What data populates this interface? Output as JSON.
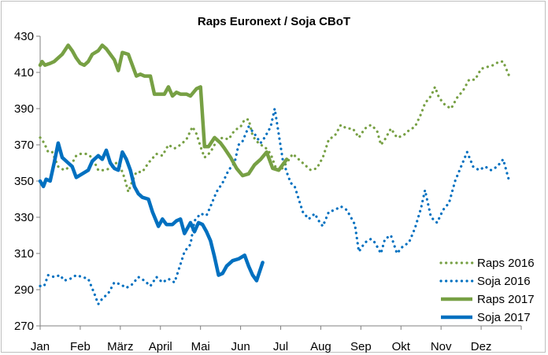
{
  "chart_data": {
    "type": "line",
    "title": "Raps Euronext / Soja CBoT",
    "xlabel": "",
    "ylabel": "",
    "ylim": [
      270,
      430
    ],
    "yticks": [
      270,
      290,
      310,
      330,
      350,
      370,
      390,
      410,
      430
    ],
    "xlim": [
      0,
      12
    ],
    "x_tick_labels": [
      "Jan",
      "Feb",
      "März",
      "April",
      "Mai",
      "Jun",
      "Jul",
      "Aug",
      "Sep",
      "Okt",
      "Nov",
      "Dez"
    ],
    "grid": false,
    "legend_position": "bottom-right",
    "series": [
      {
        "name": "Raps 2016",
        "color": "#77a044",
        "style": "dotted",
        "points": [
          [
            0.0,
            374
          ],
          [
            0.1,
            371
          ],
          [
            0.2,
            366
          ],
          [
            0.3,
            366
          ],
          [
            0.45,
            358
          ],
          [
            0.6,
            356
          ],
          [
            0.75,
            358
          ],
          [
            0.9,
            364
          ],
          [
            1.0,
            365
          ],
          [
            1.15,
            365
          ],
          [
            1.3,
            363
          ],
          [
            1.45,
            356
          ],
          [
            1.6,
            356
          ],
          [
            1.75,
            357
          ],
          [
            1.9,
            360
          ],
          [
            2.0,
            358
          ],
          [
            2.1,
            352
          ],
          [
            2.2,
            344
          ],
          [
            2.3,
            350
          ],
          [
            2.4,
            355
          ],
          [
            2.55,
            355
          ],
          [
            2.7,
            360
          ],
          [
            2.9,
            365
          ],
          [
            3.05,
            364
          ],
          [
            3.2,
            370
          ],
          [
            3.35,
            368
          ],
          [
            3.5,
            370
          ],
          [
            3.65,
            373
          ],
          [
            3.8,
            380
          ],
          [
            3.9,
            376
          ],
          [
            4.0,
            369
          ],
          [
            4.1,
            363
          ],
          [
            4.25,
            366
          ],
          [
            4.4,
            372
          ],
          [
            4.55,
            374
          ],
          [
            4.7,
            373
          ],
          [
            4.85,
            378
          ],
          [
            5.0,
            380
          ],
          [
            5.1,
            384
          ],
          [
            5.2,
            384
          ],
          [
            5.3,
            375
          ],
          [
            5.4,
            372
          ],
          [
            5.5,
            370
          ],
          [
            5.6,
            369
          ],
          [
            5.75,
            365
          ],
          [
            5.9,
            356
          ],
          [
            6.0,
            356
          ],
          [
            6.15,
            360
          ],
          [
            6.3,
            365
          ],
          [
            6.45,
            362
          ],
          [
            6.6,
            359
          ],
          [
            6.75,
            356
          ],
          [
            6.9,
            357
          ],
          [
            7.05,
            363
          ],
          [
            7.2,
            373
          ],
          [
            7.35,
            375
          ],
          [
            7.5,
            381
          ],
          [
            7.65,
            379
          ],
          [
            7.8,
            379
          ],
          [
            7.95,
            374
          ],
          [
            8.1,
            379
          ],
          [
            8.25,
            381
          ],
          [
            8.4,
            378
          ],
          [
            8.5,
            370
          ],
          [
            8.6,
            373
          ],
          [
            8.75,
            379
          ],
          [
            8.9,
            374
          ],
          [
            9.05,
            375
          ],
          [
            9.2,
            378
          ],
          [
            9.35,
            380
          ],
          [
            9.5,
            387
          ],
          [
            9.6,
            393
          ],
          [
            9.75,
            397
          ],
          [
            9.85,
            402
          ],
          [
            9.95,
            396
          ],
          [
            10.1,
            392
          ],
          [
            10.25,
            390
          ],
          [
            10.4,
            396
          ],
          [
            10.55,
            400
          ],
          [
            10.7,
            406
          ],
          [
            10.85,
            406
          ],
          [
            11.0,
            412
          ],
          [
            11.15,
            413
          ],
          [
            11.3,
            414
          ],
          [
            11.45,
            416
          ],
          [
            11.55,
            416
          ],
          [
            11.7,
            408
          ]
        ]
      },
      {
        "name": "Soja 2016",
        "color": "#0070c0",
        "style": "dotted",
        "points": [
          [
            0.0,
            292
          ],
          [
            0.1,
            292
          ],
          [
            0.2,
            298
          ],
          [
            0.35,
            297
          ],
          [
            0.5,
            298
          ],
          [
            0.6,
            295
          ],
          [
            0.75,
            296
          ],
          [
            0.9,
            298
          ],
          [
            1.05,
            297
          ],
          [
            1.2,
            296
          ],
          [
            1.35,
            288
          ],
          [
            1.45,
            282
          ],
          [
            1.55,
            285
          ],
          [
            1.7,
            288
          ],
          [
            1.85,
            294
          ],
          [
            2.0,
            293
          ],
          [
            2.15,
            291
          ],
          [
            2.3,
            293
          ],
          [
            2.45,
            297
          ],
          [
            2.6,
            295
          ],
          [
            2.75,
            292
          ],
          [
            2.9,
            297
          ],
          [
            3.05,
            294
          ],
          [
            3.2,
            296
          ],
          [
            3.35,
            294
          ],
          [
            3.5,
            304
          ],
          [
            3.6,
            311
          ],
          [
            3.75,
            315
          ],
          [
            3.85,
            328
          ],
          [
            4.0,
            332
          ],
          [
            4.15,
            331
          ],
          [
            4.25,
            336
          ],
          [
            4.4,
            344
          ],
          [
            4.55,
            349
          ],
          [
            4.7,
            356
          ],
          [
            4.85,
            360
          ],
          [
            4.95,
            370
          ],
          [
            5.05,
            372
          ],
          [
            5.2,
            380
          ],
          [
            5.35,
            376
          ],
          [
            5.5,
            371
          ],
          [
            5.6,
            374
          ],
          [
            5.75,
            380
          ],
          [
            5.85,
            390
          ],
          [
            5.95,
            376
          ],
          [
            6.05,
            362
          ],
          [
            6.15,
            355
          ],
          [
            6.25,
            349
          ],
          [
            6.35,
            347
          ],
          [
            6.45,
            340
          ],
          [
            6.55,
            333
          ],
          [
            6.7,
            329
          ],
          [
            6.85,
            332
          ],
          [
            6.95,
            328
          ],
          [
            7.05,
            325
          ],
          [
            7.2,
            333
          ],
          [
            7.35,
            334
          ],
          [
            7.5,
            336
          ],
          [
            7.65,
            334
          ],
          [
            7.75,
            330
          ],
          [
            7.85,
            326
          ],
          [
            7.95,
            311
          ],
          [
            8.1,
            316
          ],
          [
            8.25,
            318
          ],
          [
            8.35,
            316
          ],
          [
            8.5,
            310
          ],
          [
            8.6,
            318
          ],
          [
            8.75,
            320
          ],
          [
            8.9,
            310
          ],
          [
            9.05,
            314
          ],
          [
            9.2,
            316
          ],
          [
            9.35,
            324
          ],
          [
            9.5,
            335
          ],
          [
            9.6,
            345
          ],
          [
            9.75,
            330
          ],
          [
            9.9,
            327
          ],
          [
            10.05,
            334
          ],
          [
            10.2,
            338
          ],
          [
            10.35,
            350
          ],
          [
            10.5,
            358
          ],
          [
            10.65,
            366
          ],
          [
            10.8,
            358
          ],
          [
            10.95,
            356
          ],
          [
            11.1,
            358
          ],
          [
            11.25,
            356
          ],
          [
            11.4,
            358
          ],
          [
            11.55,
            362
          ],
          [
            11.7,
            350
          ]
        ]
      },
      {
        "name": "Raps 2017",
        "color": "#77a044",
        "style": "solid",
        "points": [
          [
            0.0,
            414
          ],
          [
            0.05,
            416
          ],
          [
            0.12,
            414
          ],
          [
            0.25,
            415
          ],
          [
            0.35,
            416
          ],
          [
            0.45,
            418
          ],
          [
            0.55,
            420
          ],
          [
            0.7,
            425
          ],
          [
            0.8,
            422
          ],
          [
            0.9,
            418
          ],
          [
            1.0,
            415
          ],
          [
            1.1,
            414
          ],
          [
            1.2,
            416
          ],
          [
            1.3,
            420
          ],
          [
            1.45,
            422
          ],
          [
            1.55,
            425
          ],
          [
            1.65,
            423
          ],
          [
            1.75,
            420
          ],
          [
            1.85,
            417
          ],
          [
            1.95,
            411
          ],
          [
            2.05,
            421
          ],
          [
            2.2,
            420
          ],
          [
            2.3,
            414
          ],
          [
            2.4,
            408
          ],
          [
            2.5,
            409
          ],
          [
            2.6,
            408
          ],
          [
            2.75,
            408
          ],
          [
            2.85,
            398
          ],
          [
            3.0,
            398
          ],
          [
            3.1,
            398
          ],
          [
            3.2,
            402
          ],
          [
            3.3,
            397
          ],
          [
            3.4,
            399
          ],
          [
            3.5,
            398
          ],
          [
            3.65,
            398
          ],
          [
            3.75,
            397
          ],
          [
            3.9,
            401
          ],
          [
            4.0,
            402
          ],
          [
            4.1,
            369
          ],
          [
            4.2,
            369
          ],
          [
            4.35,
            374
          ],
          [
            4.5,
            371
          ],
          [
            4.6,
            368
          ],
          [
            4.75,
            363
          ],
          [
            4.9,
            357
          ],
          [
            5.05,
            353
          ],
          [
            5.2,
            354
          ],
          [
            5.35,
            359
          ],
          [
            5.5,
            362
          ],
          [
            5.65,
            366
          ],
          [
            5.8,
            357
          ],
          [
            5.95,
            356
          ],
          [
            6.05,
            359
          ],
          [
            6.15,
            362
          ]
        ]
      },
      {
        "name": "Soja 2017",
        "color": "#0070c0",
        "style": "solid",
        "points": [
          [
            0.0,
            350
          ],
          [
            0.08,
            347
          ],
          [
            0.15,
            351
          ],
          [
            0.25,
            350
          ],
          [
            0.35,
            360
          ],
          [
            0.45,
            371
          ],
          [
            0.55,
            363
          ],
          [
            0.7,
            360
          ],
          [
            0.8,
            358
          ],
          [
            0.9,
            352
          ],
          [
            1.05,
            354
          ],
          [
            1.2,
            356
          ],
          [
            1.3,
            361
          ],
          [
            1.45,
            364
          ],
          [
            1.55,
            362
          ],
          [
            1.65,
            367
          ],
          [
            1.75,
            360
          ],
          [
            1.85,
            357
          ],
          [
            1.95,
            356
          ],
          [
            2.05,
            366
          ],
          [
            2.15,
            362
          ],
          [
            2.25,
            356
          ],
          [
            2.35,
            347
          ],
          [
            2.45,
            343
          ],
          [
            2.55,
            341
          ],
          [
            2.7,
            340
          ],
          [
            2.8,
            333
          ],
          [
            2.95,
            325
          ],
          [
            3.05,
            329
          ],
          [
            3.15,
            326
          ],
          [
            3.3,
            326
          ],
          [
            3.4,
            328
          ],
          [
            3.5,
            329
          ],
          [
            3.6,
            321
          ],
          [
            3.75,
            327
          ],
          [
            3.85,
            322
          ],
          [
            3.95,
            327
          ],
          [
            4.05,
            326
          ],
          [
            4.15,
            322
          ],
          [
            4.25,
            317
          ],
          [
            4.35,
            308
          ],
          [
            4.45,
            298
          ],
          [
            4.55,
            299
          ],
          [
            4.65,
            303
          ],
          [
            4.8,
            306
          ],
          [
            4.95,
            307
          ],
          [
            5.1,
            309
          ],
          [
            5.2,
            303
          ],
          [
            5.3,
            298
          ],
          [
            5.4,
            295
          ],
          [
            5.55,
            305
          ]
        ]
      }
    ]
  }
}
